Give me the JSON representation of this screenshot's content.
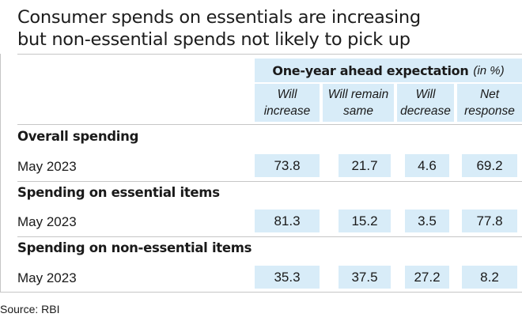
{
  "title_line1": "Consumer spends on essentials are increasing",
  "title_line2": "but non-essential spends not likely to pick up",
  "source": "Source: RBI",
  "chart_data": {
    "type": "table",
    "header": {
      "title": "One-year ahead expectation",
      "unit": "(in %)"
    },
    "columns": [
      {
        "line1": "Will",
        "line2": "increase"
      },
      {
        "line1": "Will remain",
        "line2": "same"
      },
      {
        "line1": "Will",
        "line2": "decrease"
      },
      {
        "line1": "Net",
        "line2": "response"
      }
    ],
    "sections": [
      {
        "name": "Overall spending",
        "rows": [
          {
            "label": "May 2023",
            "values": [
              "73.8",
              "21.7",
              "4.6",
              "69.2"
            ]
          }
        ]
      },
      {
        "name": "Spending on essential items",
        "rows": [
          {
            "label": "May 2023",
            "values": [
              "81.3",
              "15.2",
              "3.5",
              "77.8"
            ]
          }
        ]
      },
      {
        "name": "Spending on non-essential items",
        "rows": [
          {
            "label": "May 2023",
            "values": [
              "35.3",
              "37.5",
              "27.2",
              "8.2"
            ]
          }
        ]
      }
    ],
    "colors": {
      "highlight": "#d8ecf8",
      "rule": "#c6c6c6"
    }
  }
}
